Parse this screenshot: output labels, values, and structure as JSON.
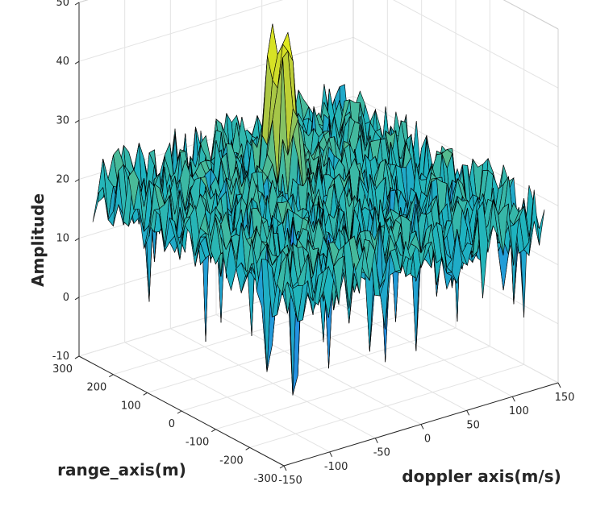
{
  "chart_data": {
    "type": "surface",
    "title": "",
    "xlabel": "doppler axis(m/s)",
    "ylabel": "range_axis(m)",
    "zlabel": "Amplitude",
    "xlim": [
      -150,
      150
    ],
    "ylim": [
      -300,
      300
    ],
    "zlim": [
      -10,
      50
    ],
    "xticks": [
      -150,
      -100,
      -50,
      0,
      50,
      100,
      150
    ],
    "yticks": [
      -300,
      -200,
      -100,
      0,
      100,
      200,
      300
    ],
    "zticks": [
      -10,
      0,
      10,
      20,
      30,
      40,
      50
    ],
    "x_range": [
      -135,
      135
    ],
    "y_range": [
      -300,
      300
    ],
    "noise_floor_mean": 18,
    "noise_floor_spread": 6,
    "peak": {
      "x": 0,
      "y": 110,
      "z": 47
    },
    "min_dip": -12,
    "colormap": "parula",
    "edge_color": "#000000",
    "grid": true
  }
}
